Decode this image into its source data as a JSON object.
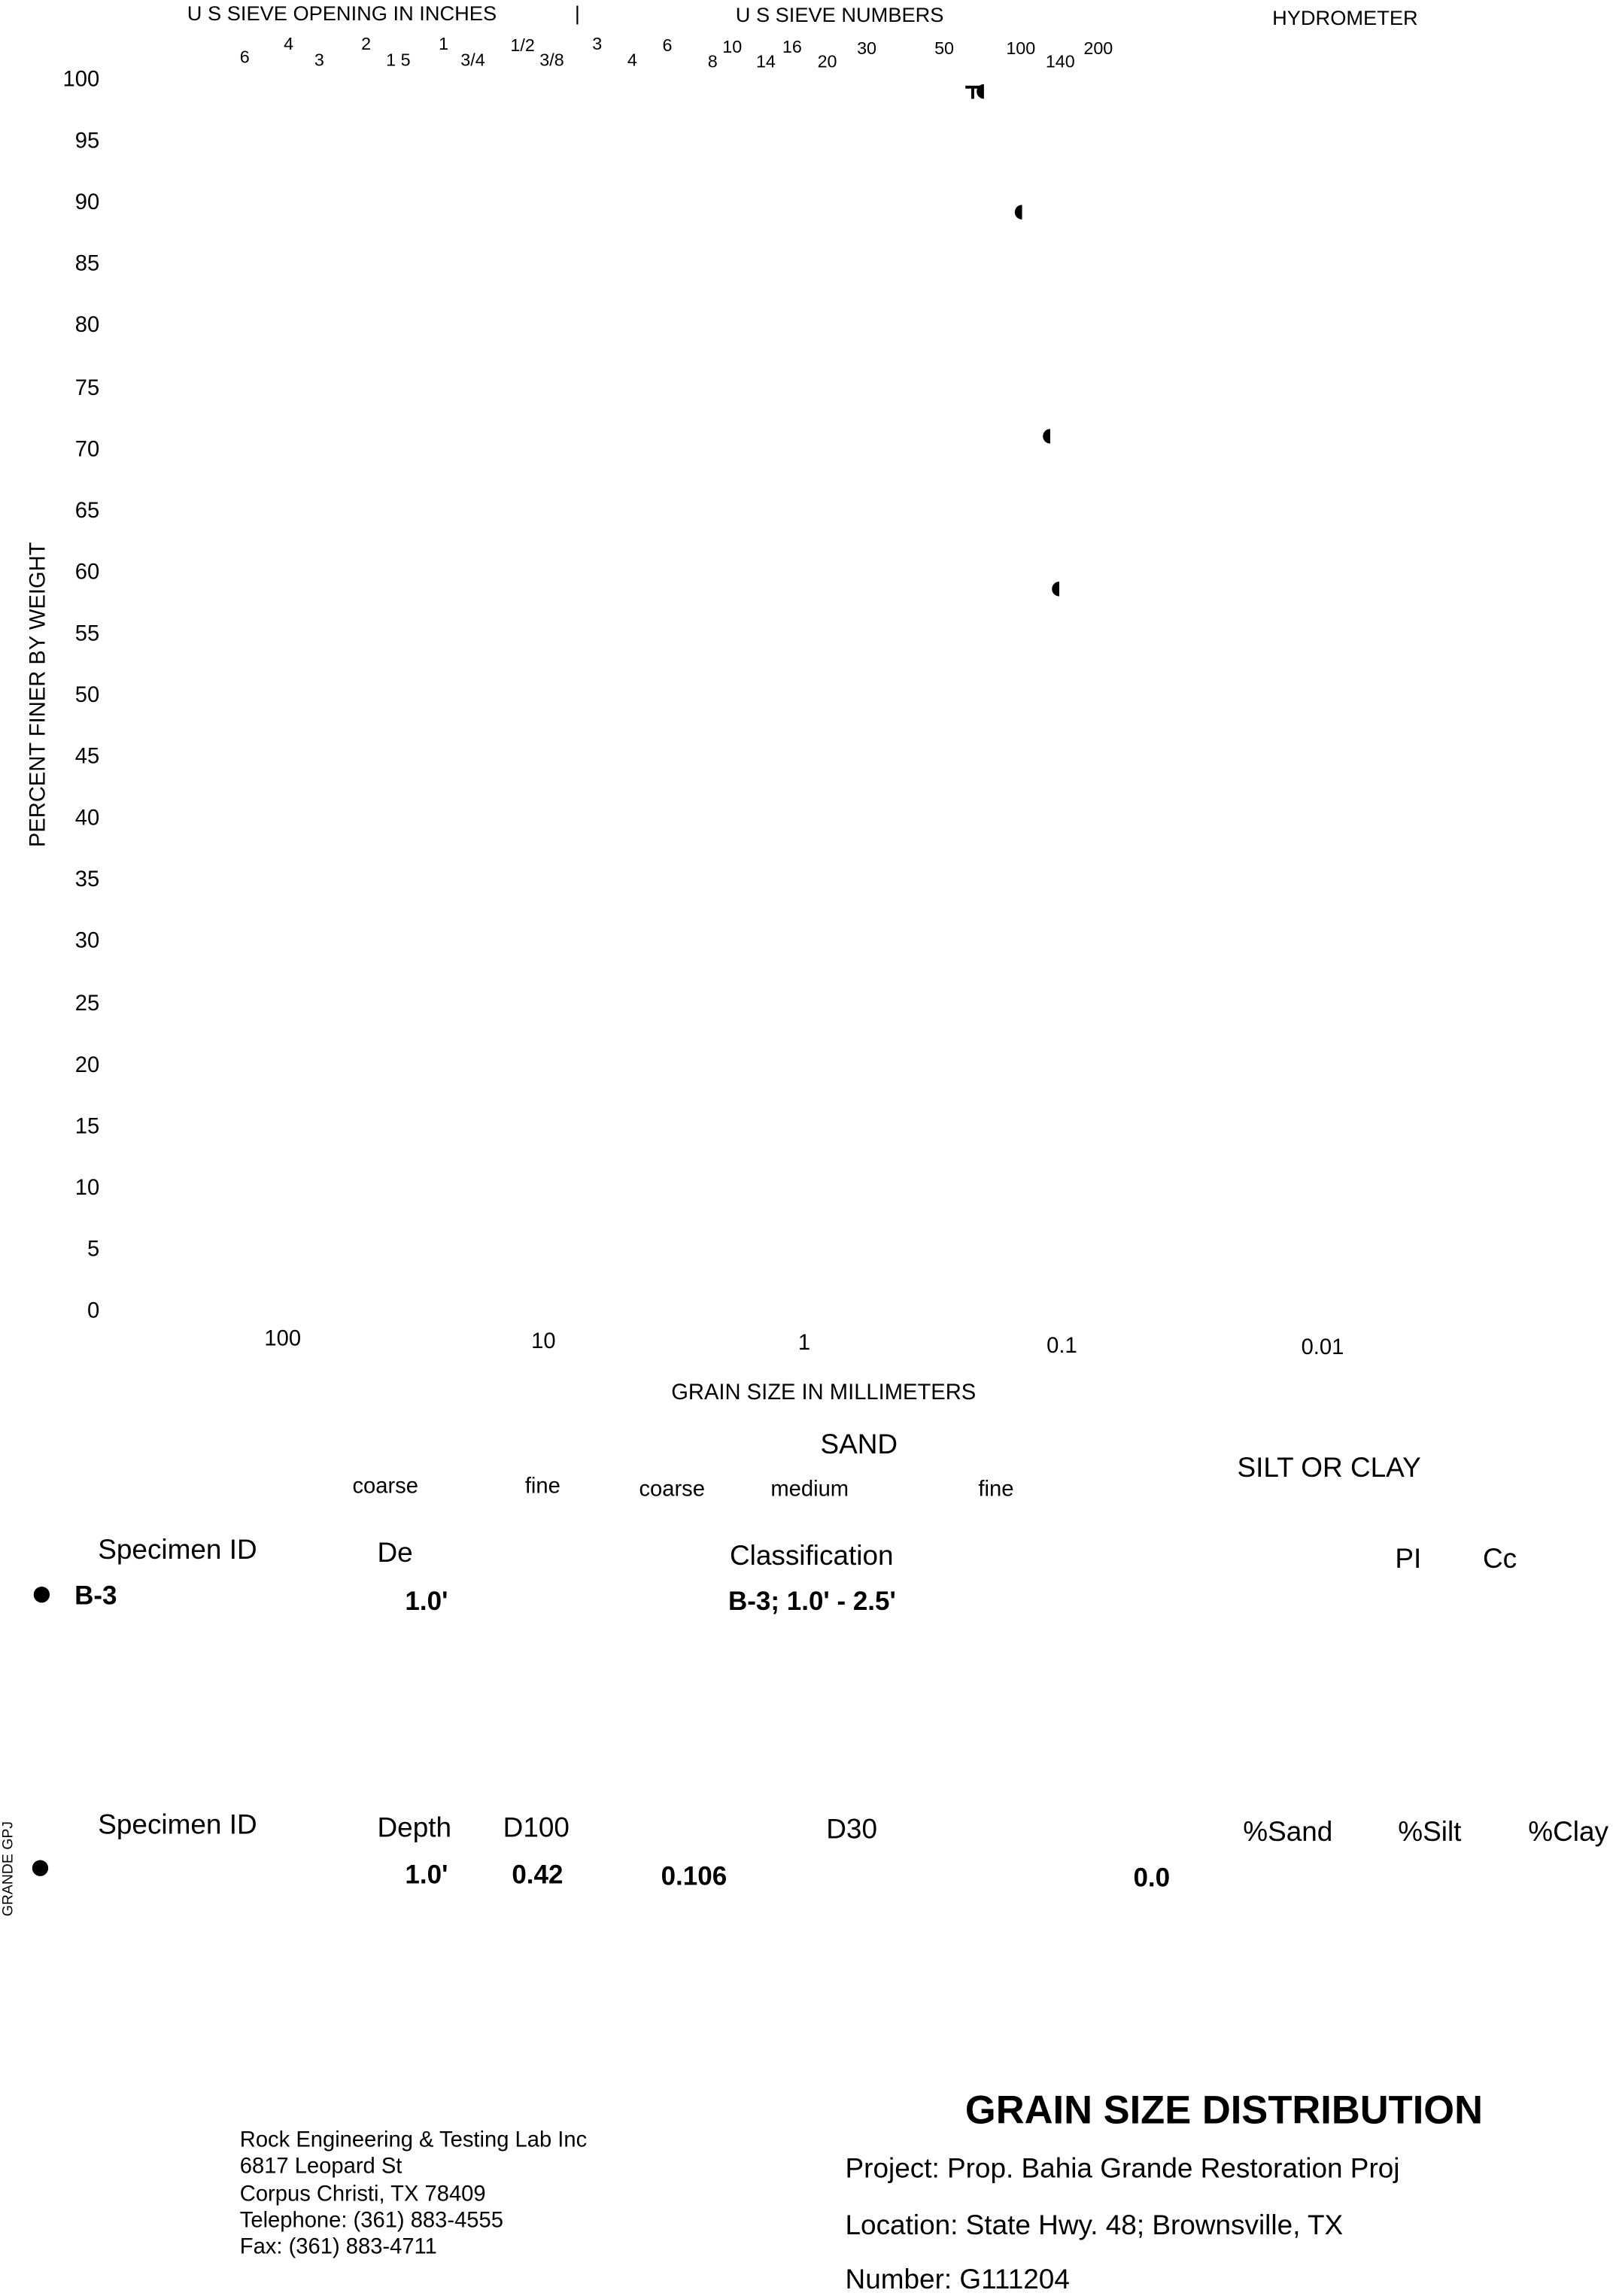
{
  "header": {
    "sieve_inches_label": "U S  SIEVE OPENING IN INCHES",
    "divider": "|",
    "sieve_numbers_label": "U S  SIEVE NUMBERS",
    "hydrometer_label": "HYDROMETER",
    "sieve_labels": [
      "6",
      "4",
      "3",
      "2",
      "1 5",
      "1",
      "3/4",
      "1/2",
      "3/8",
      "3",
      "4",
      "6",
      "8",
      "10",
      "14",
      "16",
      "20",
      "30",
      "50",
      "100",
      "140",
      "200"
    ]
  },
  "chart_data": {
    "type": "scatter",
    "xlabel": "GRAIN SIZE IN MILLIMETERS",
    "ylabel": "PERCENT FINER BY WEIGHT",
    "x_scale": "log",
    "x_reversed": true,
    "xlim": [
      0.005,
      300
    ],
    "ylim": [
      0,
      100
    ],
    "x_ticks": [
      "100",
      "10",
      "1",
      "0.1",
      "0.01"
    ],
    "y_ticks": [
      "100",
      "95",
      "90",
      "85",
      "80",
      "75",
      "70",
      "65",
      "60",
      "55",
      "50",
      "45",
      "40",
      "35",
      "30",
      "25",
      "20",
      "15",
      "10",
      "5",
      "0"
    ],
    "grid": false,
    "series": [
      {
        "marker": "circle",
        "x": [
          0.21,
          0.15,
          0.117,
          0.108
        ],
        "y": [
          99.1,
          89.3,
          71.1,
          58.7
        ]
      },
      {
        "marker": "triangle-down",
        "x": [
          0.226
        ],
        "y": [
          99.1
        ]
      }
    ]
  },
  "soil_bands": {
    "gravel_coarse": "coarse",
    "gravel_fine": "fine",
    "sand": "SAND",
    "sand_coarse": "coarse",
    "sand_medium": "medium",
    "sand_fine": "fine",
    "silt_clay": "SILT OR CLAY"
  },
  "table1": {
    "headers": {
      "specimen": "Specimen ID",
      "depth": "De",
      "classification": "Classification",
      "pi": "PI",
      "cc": "Cc"
    },
    "row": {
      "specimen": "B-3",
      "depth": "1.0'",
      "classification": "B-3; 1.0' - 2.5'"
    }
  },
  "table2": {
    "headers": {
      "specimen": "Specimen ID",
      "depth": "Depth",
      "d100": "D100",
      "d30": "D30",
      "sand": "%Sand",
      "silt": "%Silt",
      "clay": "%Clay"
    },
    "row": {
      "depth": "1.0'",
      "d100": "0.42",
      "v3": "0.106",
      "v4": "0.0"
    }
  },
  "side_label": "GRANDE GPJ",
  "footer": {
    "company": [
      "Rock Engineering & Testing Lab   Inc",
      "6817 Leopard St",
      "Corpus Christi, TX 78409",
      "Telephone:  (361) 883-4555",
      "Fax:  (361) 883-4711"
    ],
    "title": "GRAIN SIZE DISTRIBUTION",
    "project": "Project:  Prop. Bahia Grande Restoration Proj",
    "location": "Location:  State Hwy. 48; Brownsville, TX",
    "number": "Number:  G111204"
  }
}
